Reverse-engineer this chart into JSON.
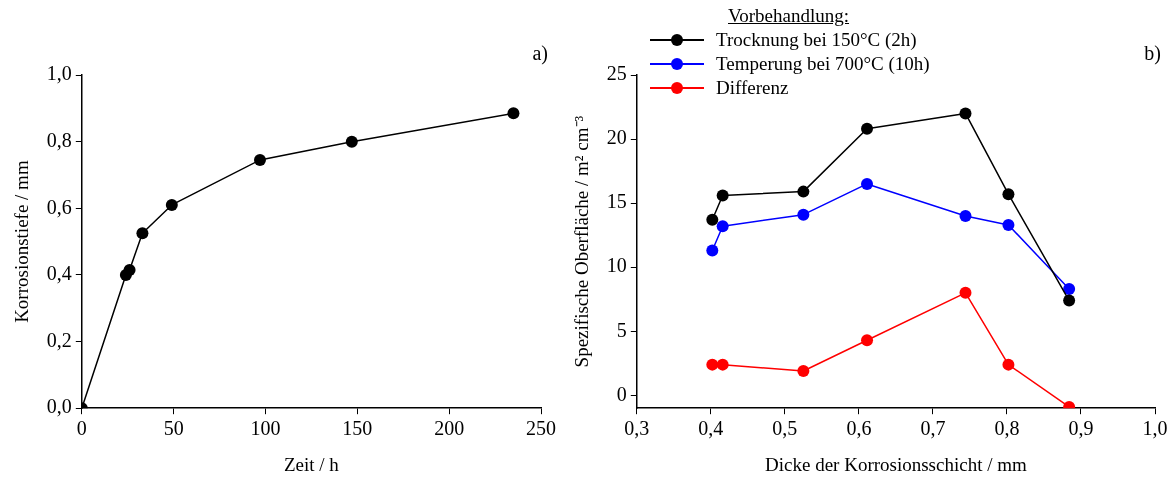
{
  "chart_data": [
    {
      "type": "line",
      "xlabel": "Zeit / h",
      "ylabel": "Korrosionstiefe / mm",
      "annotations": [
        "a)"
      ],
      "x": [
        0,
        24,
        26,
        33,
        49,
        97,
        147,
        235
      ],
      "series": [
        {
          "color": "#000000",
          "values": [
            0,
            0.4,
            0.415,
            0.525,
            0.61,
            0.745,
            0.8,
            0.885
          ]
        }
      ],
      "xlim": [
        0,
        250
      ],
      "xticks": [
        0,
        50,
        100,
        150,
        200,
        250
      ],
      "ylim": [
        0,
        1
      ],
      "yticks": [
        {
          "value": 0,
          "label": "0,0"
        },
        {
          "value": 0.2,
          "label": "0,2"
        },
        {
          "value": 0.4,
          "label": "0,4"
        },
        {
          "value": 0.6,
          "label": "0,6"
        },
        {
          "value": 0.8,
          "label": "0,8"
        },
        {
          "value": 1,
          "label": "1,0"
        }
      ],
      "marker": "circle",
      "line_style": "solid"
    },
    {
      "type": "line",
      "xlabel": "Dicke der Korrosionsschicht / mm",
      "ylabel": "Spezifische Oberfläche / m² cm⁻³",
      "legend_title": "Vorbehandlung:",
      "annotations": [
        "b)"
      ],
      "x": [
        0.402,
        0.416,
        0.525,
        0.611,
        0.744,
        0.802,
        0.884
      ],
      "series": [
        {
          "name": "Trocknung bei 150°C (2h)",
          "color": "#000000",
          "values": [
            13.7,
            15.6,
            15.9,
            20.8,
            22.0,
            15.7,
            7.4
          ]
        },
        {
          "name": "Temperung bei 700°C (10h)",
          "color": "#0000ff",
          "values": [
            11.3,
            13.2,
            14.1,
            16.5,
            14.0,
            13.3,
            8.3
          ]
        },
        {
          "name": "Differenz",
          "color": "#ff0000",
          "values": [
            2.4,
            2.4,
            1.9,
            4.3,
            8.0,
            2.4,
            -0.9
          ]
        }
      ],
      "xlim": [
        0.3,
        1.0
      ],
      "xticks": [
        {
          "value": 0.3,
          "label": "0,3"
        },
        {
          "value": 0.4,
          "label": "0,4"
        },
        {
          "value": 0.5,
          "label": "0,5"
        },
        {
          "value": 0.6,
          "label": "0,6"
        },
        {
          "value": 0.7,
          "label": "0,7"
        },
        {
          "value": 0.8,
          "label": "0,8"
        },
        {
          "value": 0.9,
          "label": "0,9"
        },
        {
          "value": 1.0,
          "label": "1,0"
        }
      ],
      "ylim": [
        -1,
        25
      ],
      "yticks": [
        0,
        5,
        10,
        15,
        20,
        25
      ],
      "legend": "top left",
      "marker": "circle",
      "line_style": "solid"
    }
  ]
}
